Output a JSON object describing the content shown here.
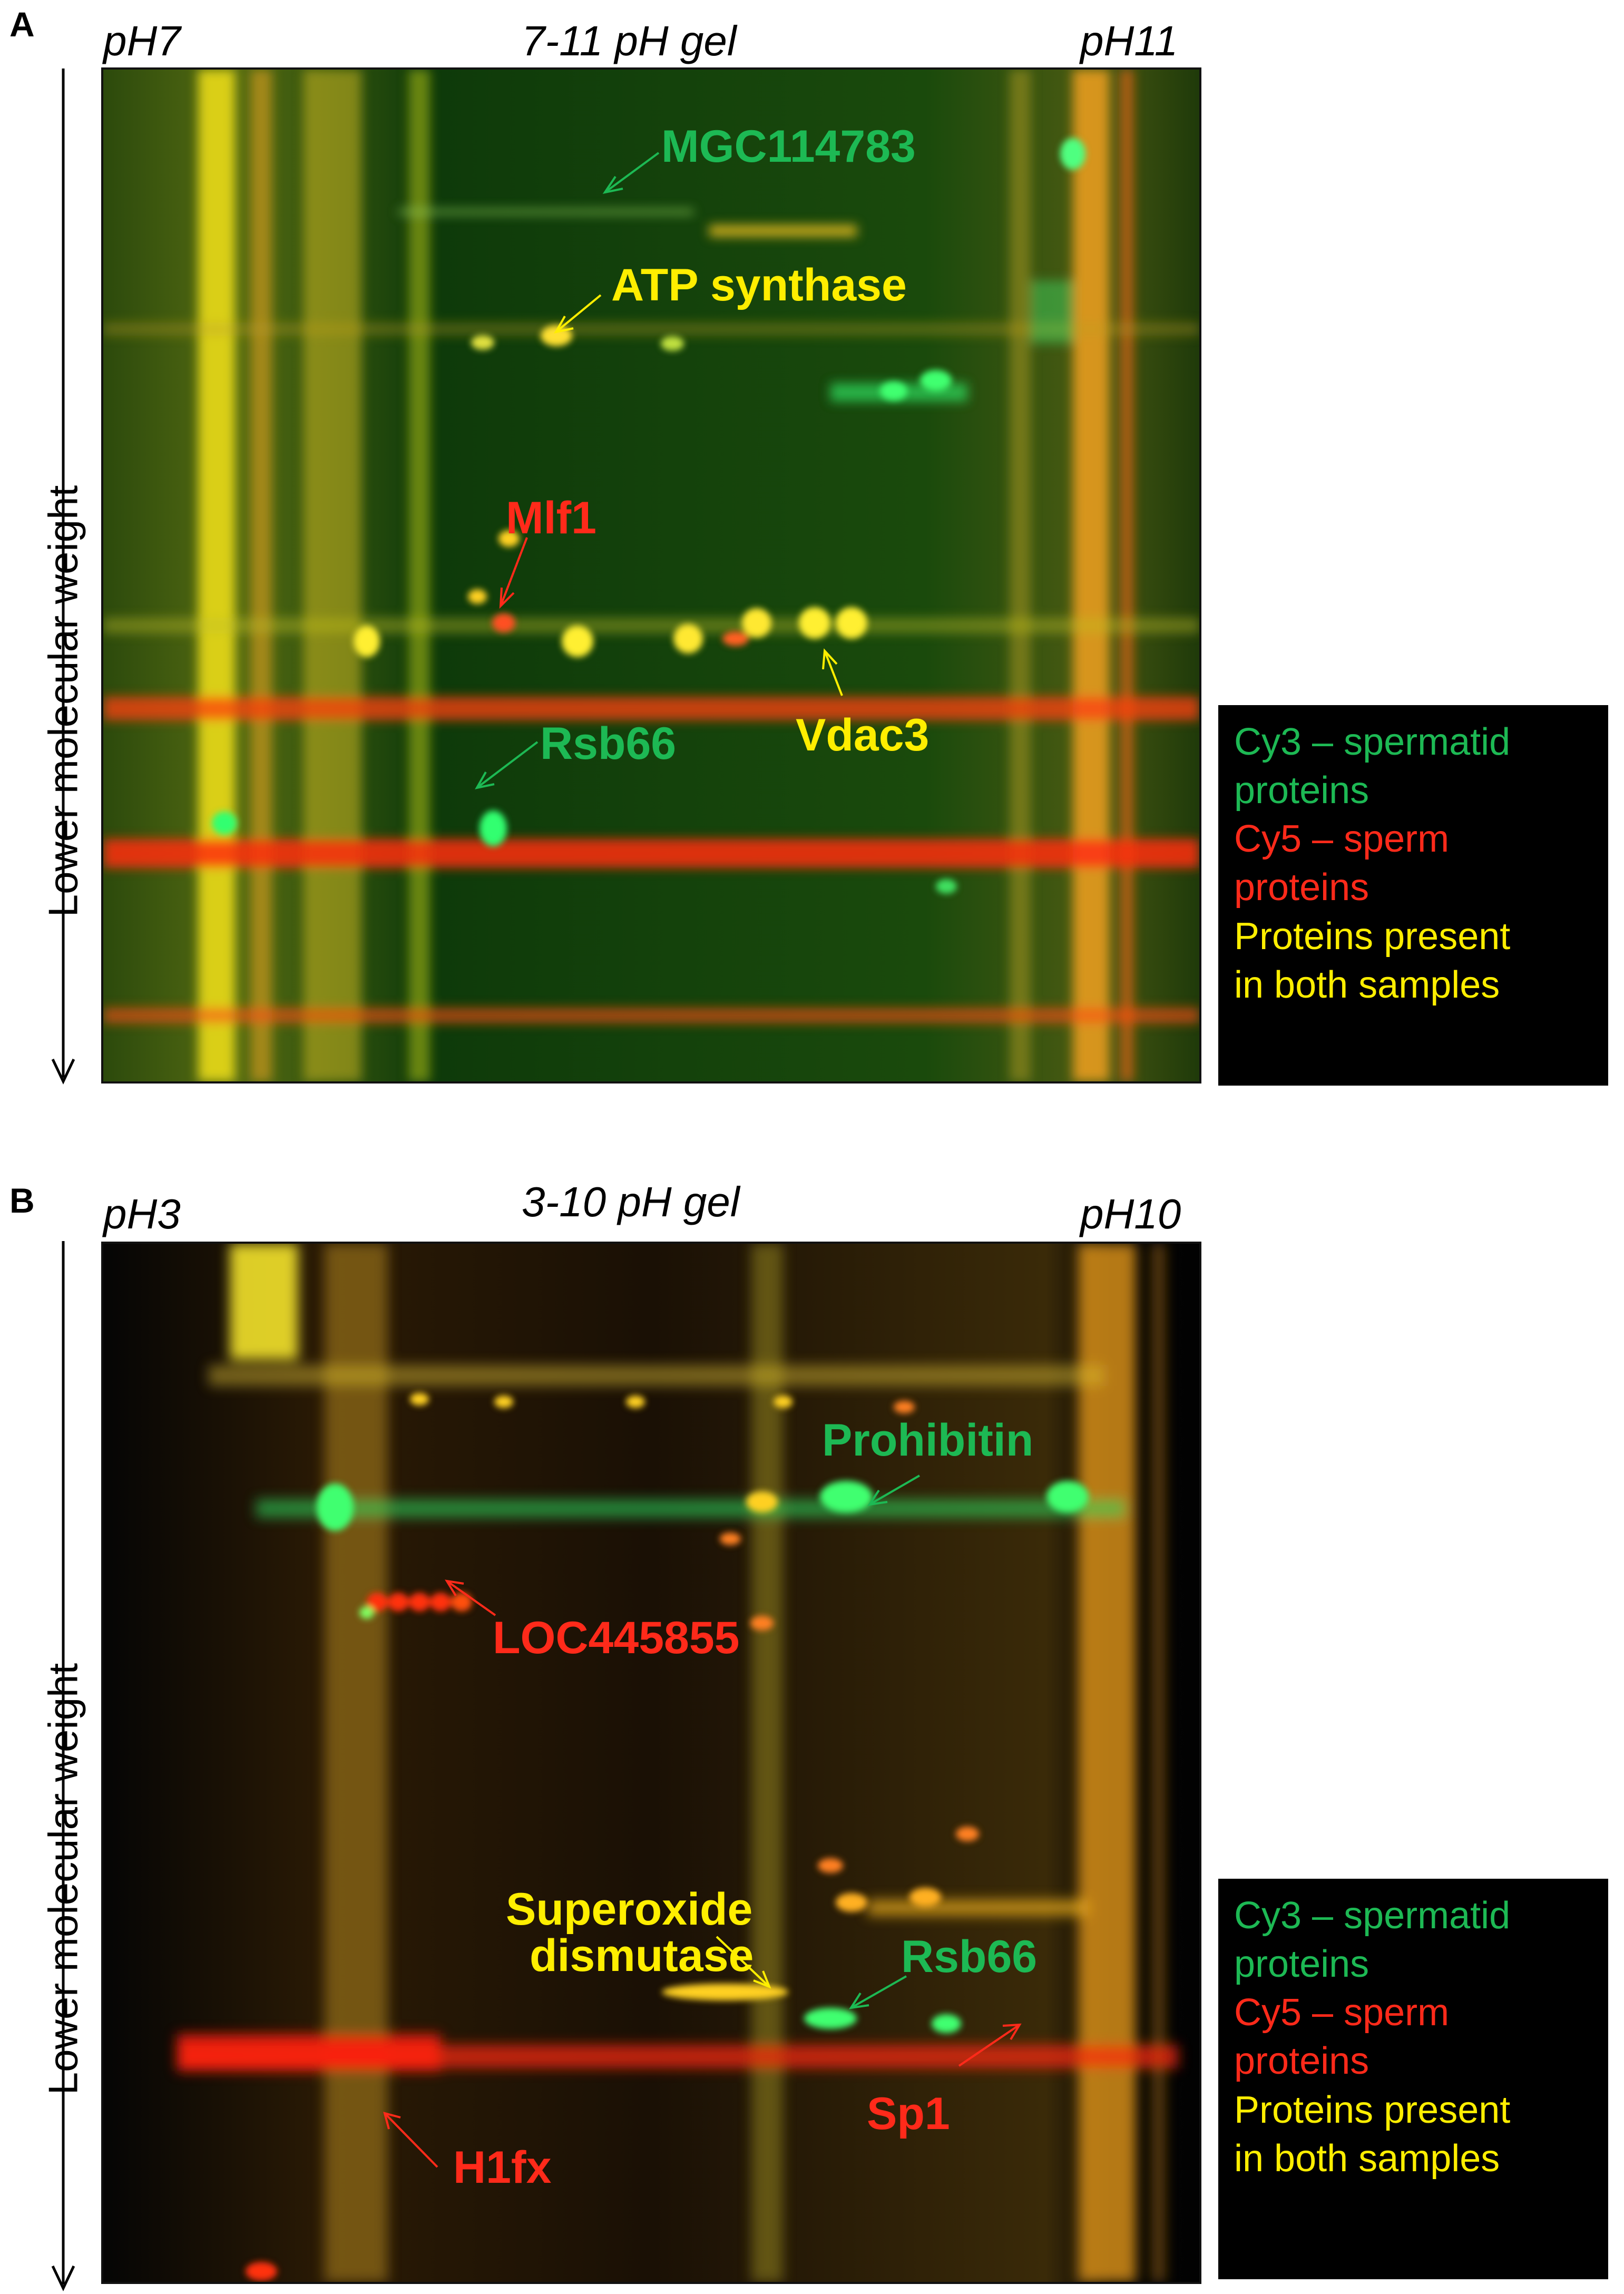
{
  "colors": {
    "green": "#1db954",
    "red": "#ff2a1a",
    "yellow": "#ffee00",
    "gel_bg_a": "#0f3a08",
    "gel_bg_b": "#050505"
  },
  "panel_a": {
    "letter": "A",
    "ph_left": "pH7",
    "ph_right": "pH11",
    "title": "7-11 pH gel",
    "y_axis_label": "Lower molecular weight",
    "annotations": {
      "mgc": "MGC114783",
      "atp": "ATP synthase",
      "mlf1": "Mlf1",
      "vdac3": "Vdac3",
      "rsb66": "Rsb66"
    },
    "legend": {
      "cy3_line1": "Cy3 – spermatid",
      "cy3_line2": "proteins",
      "cy5_line1": "Cy5 – sperm",
      "cy5_line2": "proteins",
      "both_line1": "Proteins present",
      "both_line2": "in both samples"
    }
  },
  "panel_b": {
    "letter": "B",
    "ph_left": "pH3",
    "ph_right": "pH10",
    "title": "3-10 pH gel",
    "y_axis_label": "Lower molecular weight",
    "annotations": {
      "prohibitin": "Prohibitin",
      "loc": "LOC445855",
      "sod_line1": "Superoxide",
      "sod_line2": "dismutase",
      "rsb66": "Rsb66",
      "h1fx": "H1fx",
      "sp1": "Sp1"
    },
    "legend": {
      "cy3_line1": "Cy3 – spermatid",
      "cy3_line2": "proteins",
      "cy5_line1": "Cy5 – sperm",
      "cy5_line2": "proteins",
      "both_line1": "Proteins present",
      "both_line2": "in both samples"
    }
  }
}
